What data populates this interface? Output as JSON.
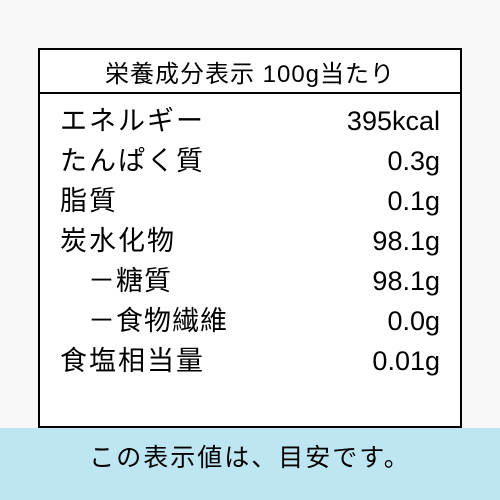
{
  "colors": {
    "page_bg": "#f8f8f8",
    "panel_bg": "#ffffff",
    "border": "#000000",
    "band_bg": "#bde6f2",
    "text": "#000000"
  },
  "typography": {
    "header_fontsize": 24,
    "row_fontsize": 27,
    "footnote_fontsize": 25
  },
  "nutrition": {
    "header": "栄養成分表示 100g当たり",
    "rows": [
      {
        "label": "エネルギー",
        "value": "395kcal",
        "sub": false
      },
      {
        "label": "たんぱく質",
        "value": "0.3g",
        "sub": false
      },
      {
        "label": "脂質",
        "value": "0.1g",
        "sub": false
      },
      {
        "label": "炭水化物",
        "value": "98.1g",
        "sub": false
      },
      {
        "label": "－糖質",
        "value": "98.1g",
        "sub": true
      },
      {
        "label": "－食物繊維",
        "value": "0.0g",
        "sub": true
      },
      {
        "label": "食塩相当量",
        "value": "0.01g",
        "sub": false
      }
    ],
    "footnote": "この表示値は、目安です。"
  }
}
